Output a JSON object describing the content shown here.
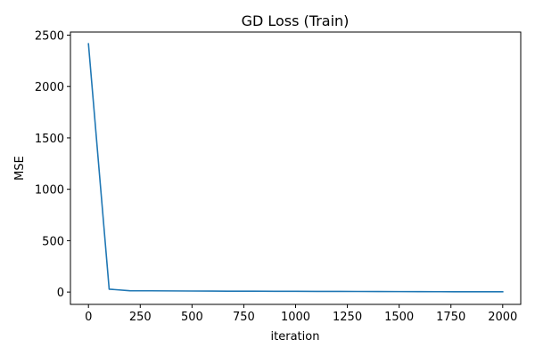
{
  "chart_data": {
    "type": "line",
    "title": "GD Loss (Train)",
    "xlabel": "iteration",
    "ylabel": "MSE",
    "xlim": [
      -87,
      2087
    ],
    "ylim": [
      -120,
      2530
    ],
    "grid": false,
    "xticks": [
      0,
      250,
      500,
      750,
      1000,
      1250,
      1500,
      1750,
      2000
    ],
    "xtick_labels": [
      "0",
      "250",
      "500",
      "750",
      "1000",
      "1250",
      "1500",
      "1750",
      "2000"
    ],
    "yticks": [
      0,
      500,
      1000,
      1500,
      2000,
      2500
    ],
    "ytick_labels": [
      "0",
      "500",
      "1000",
      "1500",
      "2000",
      "2500"
    ],
    "series": [
      {
        "color": "#1f77b4",
        "x": [
          0,
          100,
          200,
          300,
          400,
          500,
          600,
          700,
          800,
          900,
          1000,
          1100,
          1200,
          1300,
          1400,
          1500,
          1600,
          1700,
          1800,
          1900,
          2000
        ],
        "y": [
          2415,
          28,
          13,
          12,
          11,
          10,
          9,
          8.5,
          8,
          7.5,
          7,
          6.5,
          6,
          5.5,
          5,
          4.5,
          4,
          3.5,
          3,
          2.8,
          2.5
        ]
      }
    ]
  }
}
